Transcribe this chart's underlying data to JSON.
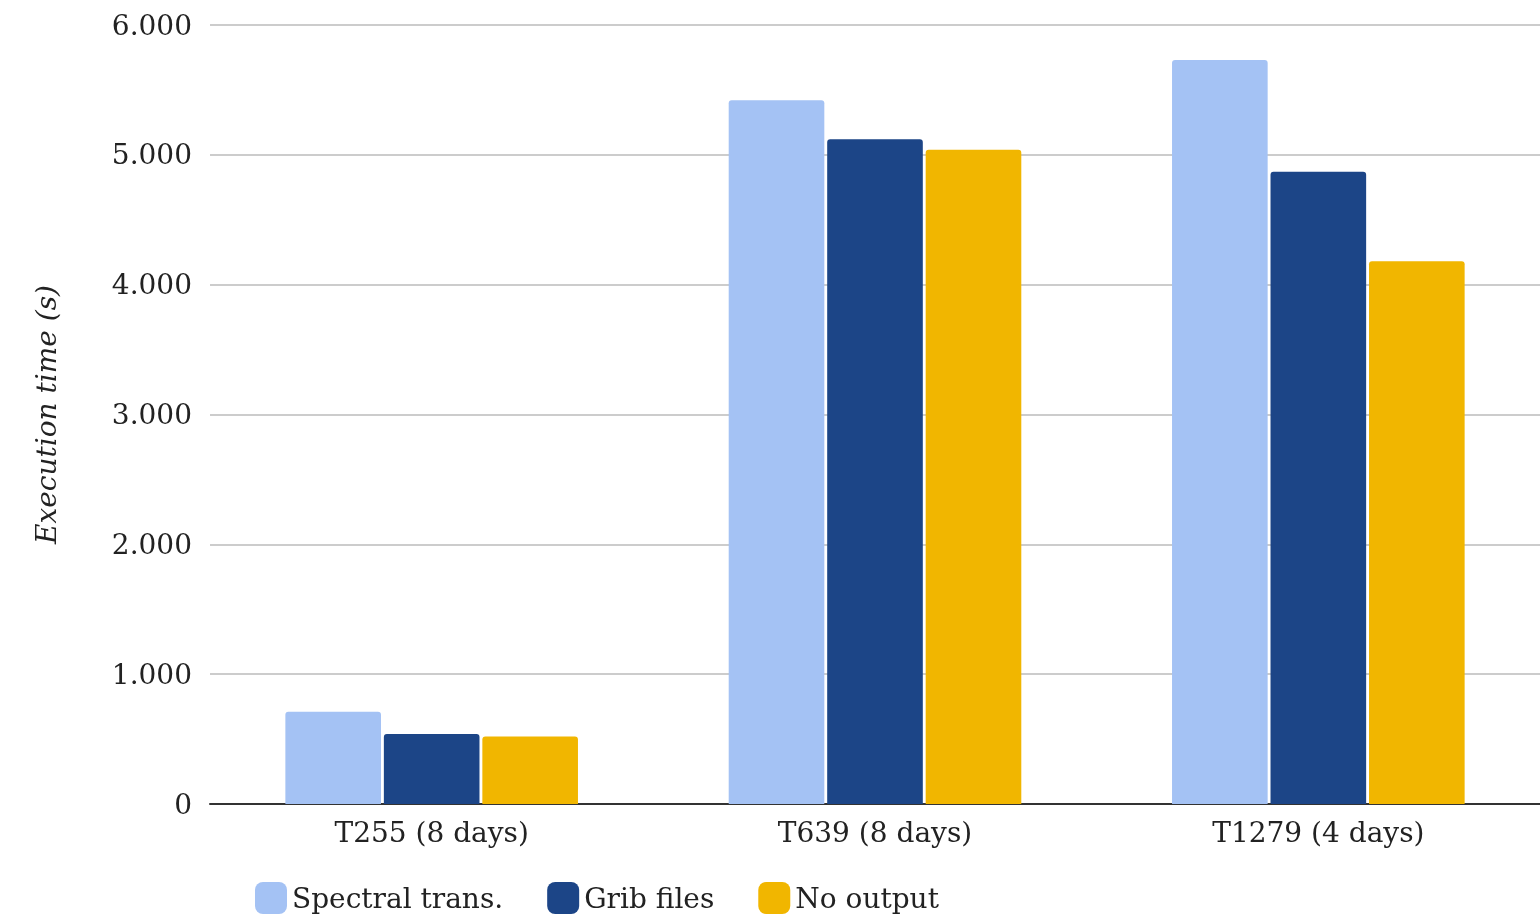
{
  "chart_data": {
    "type": "bar",
    "ylabel": "Execution time (s)",
    "categories": [
      "T255 (8 days)",
      "T639 (8 days)",
      "T1279 (4 days)"
    ],
    "series": [
      {
        "name": "Spectral trans.",
        "color": "#a4c2f4",
        "values": [
          710,
          5420,
          5730
        ]
      },
      {
        "name": "Grib files",
        "color": "#1c4587",
        "values": [
          540,
          5120,
          4870
        ]
      },
      {
        "name": "No output",
        "color": "#f1b600",
        "values": [
          520,
          5040,
          4180
        ]
      }
    ],
    "ylim": [
      0,
      6000
    ],
    "yticks": [
      0,
      {
        "value": 1000,
        "label": "1.000"
      },
      {
        "value": 2000,
        "label": "2.000"
      },
      {
        "value": 3000,
        "label": "3.000"
      },
      {
        "value": 4000,
        "label": "4.000"
      },
      {
        "value": 5000,
        "label": "5.000"
      },
      {
        "value": 6000,
        "label": "6.000"
      }
    ],
    "grid": "y",
    "legend": "bottom"
  }
}
